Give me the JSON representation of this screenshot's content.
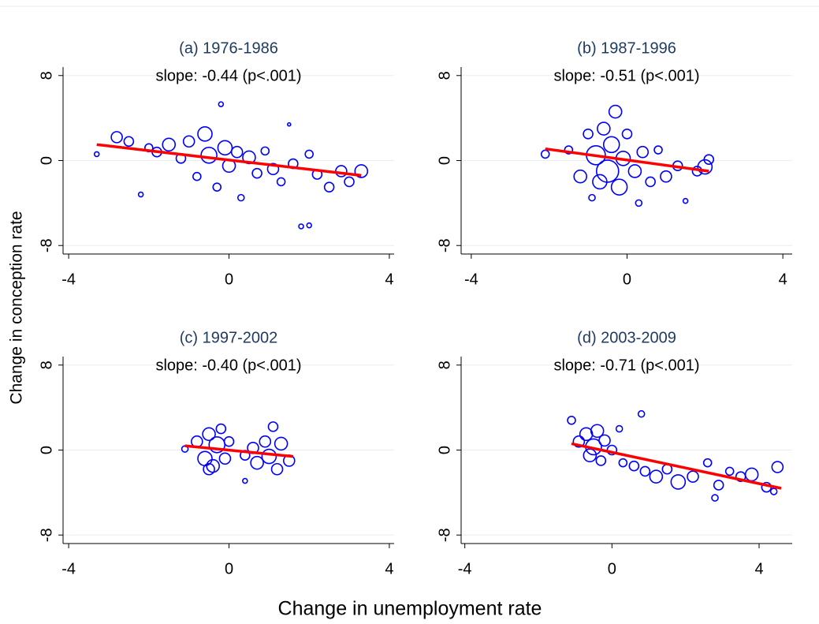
{
  "xlabel": "Change in unemployment rate",
  "ylabel": "Change in conception rate",
  "chart_data": [
    {
      "type": "scatter",
      "title": "(a) 1976-1986",
      "subtitle": "slope: -0.44 (p<.001)",
      "xlim": [
        -4.14,
        4.12
      ],
      "ylim": [
        -8.8,
        8.8
      ],
      "xticks": [
        -4,
        0,
        4
      ],
      "yticks": [
        -8,
        0,
        8
      ],
      "grid": true,
      "points": {
        "color": "#0000ff",
        "x": [
          -3.3,
          -2.8,
          -2.5,
          -2.2,
          -2.0,
          -1.8,
          -1.5,
          -1.2,
          -1.0,
          -0.8,
          -0.6,
          -0.5,
          -0.3,
          -0.2,
          -0.1,
          0.0,
          0.2,
          0.3,
          0.5,
          0.7,
          0.9,
          1.1,
          1.3,
          1.5,
          1.6,
          1.8,
          2.0,
          2.0,
          2.2,
          2.5,
          2.8,
          3.0,
          3.3
        ],
        "y": [
          0.6,
          2.2,
          1.8,
          -3.2,
          1.2,
          0.8,
          1.5,
          0.2,
          1.8,
          -1.5,
          2.5,
          0.5,
          -2.5,
          5.3,
          1.2,
          -0.5,
          0.8,
          -3.5,
          0.3,
          -1.2,
          0.9,
          -0.8,
          -2.0,
          3.4,
          -0.3,
          -6.2,
          -6.1,
          0.6,
          -1.3,
          -2.5,
          -1.0,
          -2.0,
          -1.0
        ],
        "sizes": [
          3,
          7,
          6,
          3,
          5,
          6,
          8,
          6,
          7,
          5,
          9,
          10,
          5,
          3,
          9,
          8,
          7,
          4,
          8,
          6,
          5,
          7,
          5,
          2,
          6,
          3,
          3,
          5,
          6,
          6,
          7,
          6,
          8
        ]
      },
      "fit": {
        "color": "#ff0000",
        "x": [
          -3.3,
          3.3
        ],
        "y": [
          1.5,
          -1.4
        ]
      }
    },
    {
      "type": "scatter",
      "title": "(b) 1987-1996",
      "subtitle": "slope: -0.51 (p<.001)",
      "xlim": [
        -4.26,
        4.24
      ],
      "ylim": [
        -8.8,
        8.8
      ],
      "xticks": [
        -4,
        0,
        4
      ],
      "yticks": [
        -8,
        0,
        8
      ],
      "grid": true,
      "points": {
        "color": "#0000ff",
        "x": [
          -2.1,
          -1.5,
          -1.2,
          -1.0,
          -0.9,
          -0.8,
          -0.7,
          -0.6,
          -0.5,
          -0.4,
          -0.3,
          -0.2,
          -0.1,
          0.0,
          0.2,
          0.4,
          0.6,
          0.8,
          1.0,
          1.3,
          1.5,
          1.8,
          2.0,
          2.1,
          0.3
        ],
        "y": [
          0.6,
          1.0,
          -1.5,
          2.5,
          -3.5,
          0.5,
          -2.0,
          3.0,
          -1.0,
          1.5,
          4.6,
          -2.5,
          0.2,
          2.5,
          -1.0,
          0.8,
          -2.0,
          1.0,
          -1.5,
          -0.5,
          -3.8,
          -1.0,
          -0.6,
          0.1,
          -4.0
        ],
        "sizes": [
          5,
          5,
          8,
          6,
          4,
          12,
          9,
          8,
          14,
          10,
          8,
          10,
          9,
          6,
          8,
          7,
          6,
          5,
          7,
          6,
          3,
          6,
          9,
          6,
          4
        ]
      },
      "fit": {
        "color": "#ff0000",
        "x": [
          -2.1,
          2.1
        ],
        "y": [
          1.1,
          -1.0
        ]
      }
    },
    {
      "type": "scatter",
      "title": "(c) 1997-2002",
      "subtitle": "slope: -0.40 (p<.001)",
      "xlim": [
        -4.14,
        4.12
      ],
      "ylim": [
        -8.8,
        8.8
      ],
      "xticks": [
        -4,
        0,
        4
      ],
      "yticks": [
        -8,
        0,
        8
      ],
      "grid": true,
      "points": {
        "color": "#0000ff",
        "x": [
          -1.1,
          -0.8,
          -0.6,
          -0.5,
          -0.4,
          -0.3,
          -0.2,
          -0.1,
          0.0,
          0.4,
          0.6,
          0.7,
          0.9,
          1.0,
          1.1,
          1.2,
          1.3,
          1.5,
          0.4,
          -0.5
        ],
        "y": [
          0.1,
          0.8,
          -0.8,
          1.5,
          -1.5,
          0.5,
          2.0,
          -0.8,
          0.8,
          -0.5,
          0.2,
          -1.2,
          0.8,
          -0.6,
          2.2,
          -1.8,
          0.6,
          -1.0,
          -2.9,
          -1.8
        ],
        "sizes": [
          4,
          7,
          9,
          8,
          8,
          10,
          6,
          7,
          6,
          6,
          7,
          8,
          7,
          9,
          6,
          7,
          8,
          7,
          3,
          7
        ]
      },
      "fit": {
        "color": "#ff0000",
        "x": [
          -1.1,
          1.6
        ],
        "y": [
          0.4,
          -0.6
        ]
      }
    },
    {
      "type": "scatter",
      "title": "(d) 2003-2009",
      "subtitle": "slope: -0.71 (p<.001)",
      "xlim": [
        -4.1,
        4.9
      ],
      "ylim": [
        -8.8,
        8.8
      ],
      "xticks": [
        -4,
        0,
        4
      ],
      "yticks": [
        -8,
        0,
        8
      ],
      "grid": true,
      "points": {
        "color": "#0000ff",
        "x": [
          -1.1,
          -0.9,
          -0.7,
          -0.6,
          -0.5,
          -0.4,
          -0.3,
          -0.2,
          0.0,
          0.2,
          0.3,
          0.6,
          0.8,
          0.9,
          1.2,
          1.5,
          1.8,
          2.2,
          2.6,
          2.8,
          2.9,
          3.2,
          3.5,
          3.8,
          4.2,
          4.5,
          4.4
        ],
        "y": [
          2.8,
          0.8,
          1.5,
          -0.5,
          0.3,
          1.8,
          -1.0,
          0.9,
          0.0,
          2.0,
          -1.2,
          -1.5,
          3.4,
          -2.0,
          -2.5,
          -1.8,
          -3.0,
          -2.5,
          -1.2,
          -4.5,
          -3.3,
          -2.0,
          -2.5,
          -2.3,
          -3.5,
          -1.6,
          -3.9
        ],
        "sizes": [
          5,
          7,
          8,
          8,
          10,
          8,
          6,
          7,
          6,
          4,
          5,
          6,
          4,
          6,
          8,
          6,
          9,
          7,
          5,
          4,
          6,
          5,
          6,
          8,
          6,
          7,
          4
        ]
      },
      "fit": {
        "color": "#ff0000",
        "x": [
          -1.1,
          4.6
        ],
        "y": [
          0.6,
          -3.6
        ]
      }
    }
  ]
}
